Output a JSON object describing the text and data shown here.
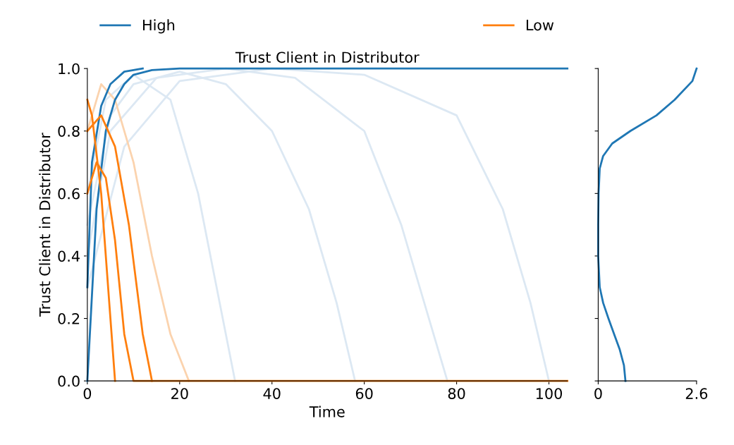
{
  "chart_data": [
    {
      "type": "line",
      "title": "Trust Client in Distributor",
      "xlabel": "Time",
      "ylabel": "Trust Client in Distributor",
      "legend": "top",
      "xlim": [
        0,
        104
      ],
      "xticks": [
        0,
        20,
        40,
        60,
        80,
        100
      ],
      "ylim": [
        0,
        1
      ],
      "yticks": [
        {
          "value": 0,
          "label": "0.0"
        },
        {
          "value": 0.2,
          "label": "0.2"
        },
        {
          "value": 0.4,
          "label": "0.4"
        },
        {
          "value": 0.6,
          "label": "0.6"
        },
        {
          "value": 0.8,
          "label": "0.8"
        },
        {
          "value": 1,
          "label": "1.0"
        }
      ],
      "series": [
        {
          "color": "#dce8f3",
          "x": [
            0,
            5,
            10,
            20,
            30,
            40,
            48,
            54,
            58
          ],
          "values": [
            0.5,
            0.85,
            0.95,
            0.99,
            0.95,
            0.8,
            0.55,
            0.25,
            0
          ]
        },
        {
          "color": "#dce8f3",
          "x": [
            0,
            5,
            15,
            30,
            45,
            60,
            68,
            74,
            78
          ],
          "values": [
            0.4,
            0.8,
            0.97,
            1,
            0.97,
            0.8,
            0.5,
            0.2,
            0
          ]
        },
        {
          "color": "#dce8f3",
          "x": [
            0,
            8,
            20,
            40,
            60,
            80,
            90,
            96,
            100
          ],
          "values": [
            0.3,
            0.75,
            0.96,
            1,
            0.98,
            0.85,
            0.55,
            0.25,
            0
          ]
        },
        {
          "color": "#dce8f3",
          "x": [
            0,
            4,
            10,
            18,
            24,
            28,
            32
          ],
          "values": [
            0.6,
            0.9,
            0.98,
            0.9,
            0.6,
            0.3,
            0
          ]
        },
        {
          "color": "#fbd3ae",
          "x": [
            0,
            3,
            6,
            10,
            14,
            18,
            22
          ],
          "values": [
            0.8,
            0.95,
            0.9,
            0.7,
            0.4,
            0.15,
            0
          ]
        },
        {
          "name": "High",
          "color": "#1f77b4",
          "x": [
            0,
            2,
            4,
            6,
            8,
            10,
            14,
            20,
            104
          ],
          "values": [
            0,
            0.55,
            0.8,
            0.9,
            0.95,
            0.98,
            0.995,
            1,
            1
          ]
        },
        {
          "color": "#1f77b4",
          "x": [
            0,
            1,
            3,
            5,
            8,
            12
          ],
          "values": [
            0.3,
            0.7,
            0.88,
            0.95,
            0.99,
            1
          ]
        },
        {
          "name": "Low",
          "color": "#ff7f0e",
          "x": [
            0,
            2,
            4,
            6,
            8,
            10,
            104
          ],
          "values": [
            0.6,
            0.7,
            0.65,
            0.45,
            0.15,
            0,
            0
          ]
        },
        {
          "color": "#ff7f0e",
          "x": [
            0,
            1,
            3,
            5,
            6
          ],
          "values": [
            0.9,
            0.85,
            0.6,
            0.2,
            0
          ]
        },
        {
          "color": "#ff7f0e",
          "x": [
            0,
            3,
            6,
            9,
            12,
            14
          ],
          "values": [
            0.8,
            0.85,
            0.75,
            0.5,
            0.15,
            0
          ]
        }
      ]
    },
    {
      "type": "line",
      "tick_labels": "x",
      "xlim": [
        0,
        2.6
      ],
      "xticks": [
        0,
        2.6
      ],
      "ylim": [
        0,
        1
      ],
      "yticks": [
        0,
        0.2,
        0.4,
        0.6,
        0.8,
        1
      ],
      "series": [
        {
          "color": "#1f77b4",
          "x": [
            0.72,
            0.68,
            0.57,
            0.42,
            0.27,
            0.13,
            0.04,
            0,
            0,
            0.01,
            0.04,
            0.13,
            0.37,
            0.85,
            1.54,
            2.02,
            2.49,
            2.6
          ],
          "values": [
            0,
            0.05,
            0.1,
            0.15,
            0.2,
            0.25,
            0.3,
            0.4,
            0.5,
            0.6,
            0.68,
            0.72,
            0.76,
            0.8,
            0.85,
            0.9,
            0.96,
            1
          ]
        }
      ]
    }
  ]
}
